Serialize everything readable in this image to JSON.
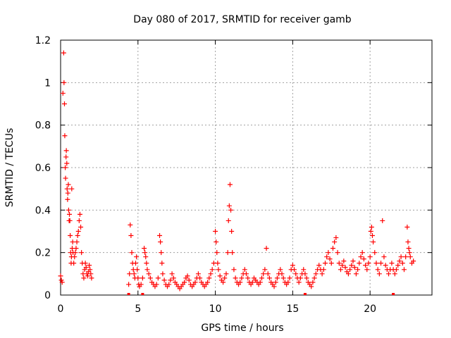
{
  "chart_data": {
    "type": "scatter",
    "title": "Day 080 of 2017, SRMTID for receiver gamb",
    "xlabel": "GPS time / hours",
    "ylabel": "SRMTID / TECUs",
    "xlim": [
      0,
      24
    ],
    "ylim": [
      0,
      1.2
    ],
    "xticks": [
      0,
      5,
      10,
      15,
      20
    ],
    "xtick_labels": [
      "0",
      "5",
      "10",
      "15",
      "20"
    ],
    "yticks": [
      0,
      0.2,
      0.4,
      0.6,
      0.8,
      1,
      1.2
    ],
    "ytick_labels": [
      "0",
      "0.2",
      "0.4",
      "0.6",
      "0.8",
      "1",
      "1.2"
    ],
    "grid": true,
    "marker": "plus",
    "series": [
      {
        "name": "SRMTID",
        "color": "#ff0000",
        "x": [
          0.0,
          0.05,
          0.1,
          0.15,
          0.2,
          0.22,
          0.25,
          0.27,
          0.3,
          0.32,
          0.35,
          0.37,
          0.4,
          0.42,
          0.45,
          0.47,
          0.5,
          0.52,
          0.55,
          0.57,
          0.6,
          0.62,
          0.65,
          0.68,
          0.7,
          0.72,
          0.75,
          0.78,
          0.8,
          0.85,
          0.9,
          0.95,
          1.0,
          1.05,
          1.1,
          1.15,
          1.2,
          1.25,
          1.3,
          1.35,
          1.4,
          1.45,
          1.5,
          1.55,
          1.6,
          1.65,
          1.7,
          1.75,
          1.8,
          1.85,
          1.9,
          1.95,
          2.0,
          4.4,
          4.45,
          4.5,
          4.55,
          4.6,
          4.65,
          4.7,
          4.75,
          4.8,
          4.85,
          4.9,
          4.95,
          5.0,
          5.05,
          5.1,
          5.2,
          5.3,
          5.4,
          5.45,
          5.5,
          5.55,
          5.6,
          5.7,
          5.8,
          5.9,
          6.0,
          6.1,
          6.2,
          6.3,
          6.4,
          6.45,
          6.5,
          6.55,
          6.6,
          6.7,
          6.8,
          6.9,
          7.0,
          7.1,
          7.2,
          7.3,
          7.4,
          7.5,
          7.6,
          7.7,
          7.8,
          7.9,
          8.0,
          8.1,
          8.2,
          8.3,
          8.4,
          8.5,
          8.6,
          8.7,
          8.8,
          8.9,
          9.0,
          9.1,
          9.2,
          9.3,
          9.4,
          9.5,
          9.6,
          9.7,
          9.8,
          9.9,
          10.0,
          10.05,
          10.1,
          10.15,
          10.2,
          10.3,
          10.4,
          10.5,
          10.6,
          10.7,
          10.8,
          10.85,
          10.9,
          10.95,
          11.0,
          11.05,
          11.1,
          11.2,
          11.3,
          11.4,
          11.5,
          11.6,
          11.7,
          11.8,
          11.9,
          12.0,
          12.1,
          12.2,
          12.3,
          12.4,
          12.5,
          12.6,
          12.7,
          12.8,
          12.9,
          13.0,
          13.1,
          13.2,
          13.3,
          13.4,
          13.5,
          13.6,
          13.7,
          13.8,
          13.9,
          14.0,
          14.1,
          14.2,
          14.3,
          14.4,
          14.5,
          14.6,
          14.7,
          14.8,
          14.9,
          15.0,
          15.1,
          15.2,
          15.3,
          15.4,
          15.5,
          15.6,
          15.7,
          15.8,
          15.9,
          16.0,
          16.1,
          16.2,
          16.3,
          16.4,
          16.5,
          16.6,
          16.7,
          16.8,
          16.9,
          17.0,
          17.1,
          17.2,
          17.3,
          17.4,
          17.5,
          17.6,
          17.7,
          17.8,
          17.9,
          18.0,
          18.1,
          18.2,
          18.3,
          18.4,
          18.5,
          18.6,
          18.7,
          18.8,
          18.9,
          19.0,
          19.1,
          19.2,
          19.3,
          19.4,
          19.5,
          19.6,
          19.7,
          19.8,
          19.9,
          20.0,
          20.05,
          20.1,
          20.15,
          20.2,
          20.3,
          20.4,
          20.5,
          20.6,
          20.7,
          20.8,
          20.9,
          21.0,
          21.1,
          21.2,
          21.3,
          21.4,
          21.5,
          21.6,
          21.7,
          21.8,
          21.9,
          22.0,
          22.1,
          22.2,
          22.3,
          22.4,
          22.45,
          22.5,
          22.55,
          22.6,
          22.7,
          22.8
        ],
        "y": [
          0.09,
          0.07,
          0.06,
          0.95,
          1.14,
          1.0,
          0.9,
          0.75,
          0.6,
          0.55,
          0.65,
          0.68,
          0.62,
          0.5,
          0.45,
          0.48,
          0.52,
          0.4,
          0.35,
          0.38,
          0.35,
          0.28,
          0.2,
          0.15,
          0.18,
          0.5,
          0.22,
          0.25,
          0.2,
          0.15,
          0.18,
          0.2,
          0.22,
          0.25,
          0.28,
          0.3,
          0.35,
          0.38,
          0.32,
          0.2,
          0.15,
          0.1,
          0.08,
          0.12,
          0.15,
          0.13,
          0.1,
          0.09,
          0.11,
          0.14,
          0.12,
          0.1,
          0.08,
          0.05,
          0.1,
          0.33,
          0.28,
          0.2,
          0.15,
          0.12,
          0.1,
          0.08,
          0.15,
          0.18,
          0.12,
          0.08,
          0.05,
          0.04,
          0.05,
          0.08,
          0.22,
          0.2,
          0.18,
          0.15,
          0.12,
          0.1,
          0.08,
          0.06,
          0.05,
          0.04,
          0.05,
          0.08,
          0.28,
          0.25,
          0.2,
          0.15,
          0.1,
          0.07,
          0.05,
          0.04,
          0.05,
          0.07,
          0.1,
          0.08,
          0.06,
          0.05,
          0.04,
          0.03,
          0.04,
          0.05,
          0.06,
          0.08,
          0.09,
          0.07,
          0.05,
          0.04,
          0.05,
          0.06,
          0.08,
          0.1,
          0.08,
          0.06,
          0.05,
          0.04,
          0.05,
          0.06,
          0.08,
          0.1,
          0.12,
          0.15,
          0.3,
          0.25,
          0.2,
          0.15,
          0.12,
          0.09,
          0.07,
          0.06,
          0.08,
          0.1,
          0.2,
          0.35,
          0.42,
          0.52,
          0.4,
          0.3,
          0.2,
          0.12,
          0.08,
          0.06,
          0.05,
          0.06,
          0.08,
          0.1,
          0.12,
          0.1,
          0.08,
          0.06,
          0.05,
          0.06,
          0.08,
          0.07,
          0.06,
          0.05,
          0.06,
          0.08,
          0.1,
          0.12,
          0.22,
          0.1,
          0.08,
          0.06,
          0.05,
          0.04,
          0.06,
          0.08,
          0.1,
          0.12,
          0.1,
          0.08,
          0.06,
          0.05,
          0.06,
          0.08,
          0.12,
          0.14,
          0.12,
          0.1,
          0.08,
          0.06,
          0.08,
          0.1,
          0.12,
          0.1,
          0.08,
          0.06,
          0.05,
          0.04,
          0.06,
          0.08,
          0.1,
          0.12,
          0.14,
          0.12,
          0.1,
          0.12,
          0.15,
          0.18,
          0.2,
          0.17,
          0.15,
          0.22,
          0.25,
          0.27,
          0.2,
          0.15,
          0.12,
          0.14,
          0.16,
          0.13,
          0.11,
          0.1,
          0.12,
          0.14,
          0.16,
          0.13,
          0.1,
          0.12,
          0.15,
          0.18,
          0.2,
          0.17,
          0.14,
          0.12,
          0.15,
          0.18,
          0.3,
          0.32,
          0.28,
          0.25,
          0.2,
          0.15,
          0.12,
          0.1,
          0.15,
          0.35,
          0.18,
          0.14,
          0.12,
          0.1,
          0.12,
          0.15,
          0.12,
          0.1,
          0.12,
          0.14,
          0.16,
          0.18,
          0.15,
          0.12,
          0.18,
          0.32,
          0.25,
          0.22,
          0.2,
          0.18,
          0.15,
          0.16
        ]
      }
    ],
    "baseline_marks_x": [
      4.4,
      5.3,
      15.8,
      21.5
    ]
  }
}
